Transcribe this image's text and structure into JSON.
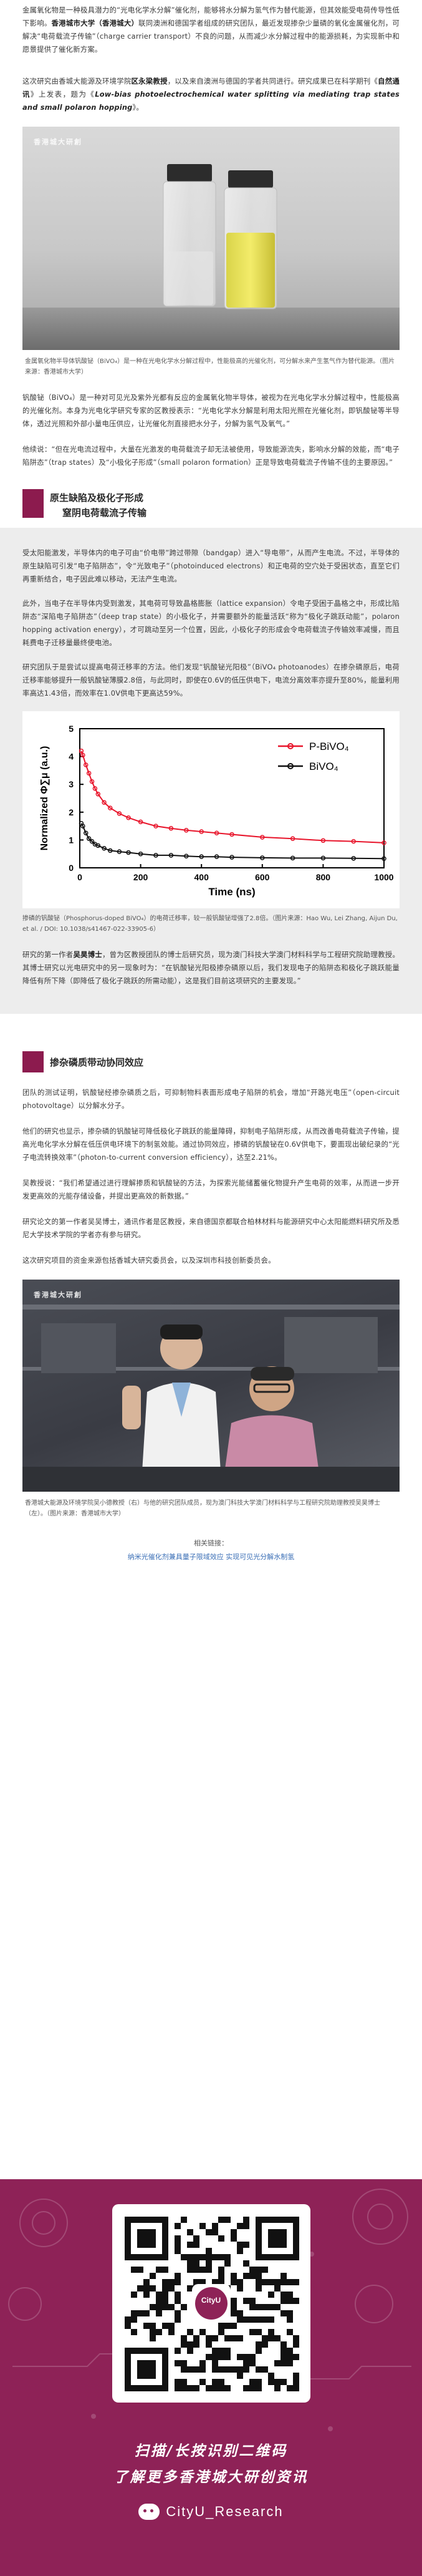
{
  "intro": {
    "p1_a": "金属氧化物是一种极具潜力的“光电化学水分解”催化剂，能够将水分解为氢气作为替代能源，但其效能受电荷传导性低下影响。",
    "p1_b": "香港城市大学（香港城大）",
    "p1_c": "联同澳洲和德国学者组成的研究团队，最近发现掺杂少量磷的氧化金属催化剂，可解决“电荷载流子传输”（charge carrier transport）不良的问题，从而减少水分解过程中的能源损耗，为实现新中和愿景提供了催化新方案。",
    "p2_a": "这次研究由香城大能源及环境学院",
    "p2_b": "区永梁教授",
    "p2_c": "，以及来自澳洲与德国的学者共同进行。研究成果已在科学期刊《",
    "p2_d": "自然通讯",
    "p2_e": "》上发表，题为《",
    "p2_f": "Low-bias photoelectrochemical water splitting via mediating trap states and small polaron hopping",
    "p2_g": "》。"
  },
  "photo1": {
    "watermark": "香港城大研創",
    "caption": "金属氧化物半导体钒酸铋（BiVO₄）是一种在光电化学水分解过程中，性能极高的光催化剂，可分解水来产生氢气作为替代能源。（图片来源：香港城市大学）"
  },
  "mid": {
    "p1": "钒酸铋（BiVO₄）是一种对可见光及紫外光都有反应的金属氧化物半导体，被视为在光电化学水分解过程中，性能极高的光催化剂。本身为光电化学研究专家的区教授表示：“光电化学水分解是利用太阳光照在光催化剂，即钒酸铋等半导体，透过光照和外部小量电压供应，让光催化剂直接把水分子，分解为氢气及氧气。”",
    "p2": "他续说：“但在光电流过程中，大量在光激发的电荷载流子却无法被使用，导致能源流失，影响水分解的效能，而“电子陷阱态”（trap states）及“小极化子形成”（small polaron formation）正是导致电荷载流子传输不佳的主要原因。”"
  },
  "section1": {
    "title_line1": "原生缺陷及极化子形成",
    "title_line2": "窒阴电荷载流子传输",
    "p1": "受太阳能激发，半导体内的电子可由“价电带”跨过带隙（bandgap）进入“导电带”，从而产生电流。不过，半导体的原生缺陷可引发“电子陷阱态”，令“光致电子”（photoinduced electrons）和正电荷的空穴处于受困状态，直至它们再重新结合，电子因此难以移动，无法产生电流。",
    "p2": "此外，当电子在半导体内受到激发，其电荷可导致晶格膨胀（lattice expansion）令电子受困于晶格之中，形成比陷阱态“深陷电子陷阱态”（deep trap state）的小极化子，并需要额外的能量活跃“称为“极化子跳跃动能”，polaron hopping activation energy），才可跳动至另一个位置，因此，小极化子的形成会令电荷载流子传输效率减慢，而且耗费电子迁移量最终使电池。",
    "p3": "研究团队于是尝试以提高电荷迁移率的方法。他们发现“钒酸铋光阳极”（BiVO₄ photoanodes）在掺杂磷原后，电荷迁移率能够提升一般钒酸铋薄膜2.8倍，与此同时，即使在0.6V的低压供电下，电流分离效率亦提升至80%，能量利用率高达1.43倍，而效率在1.0V供电下更高达59%。"
  },
  "chart_data": {
    "type": "line",
    "title": "",
    "xlabel": "Time (ns)",
    "ylabel": "Normalized Φ∑μ (a.u.)",
    "xlim": [
      0,
      1000
    ],
    "ylim": [
      0,
      5
    ],
    "xticks": [
      "0",
      "200",
      "400",
      "600",
      "800",
      "1000"
    ],
    "yticks": [
      "0",
      "1",
      "2",
      "3",
      "4",
      "5"
    ],
    "legend": "top-right",
    "series": [
      {
        "name": "P-BiVO₄",
        "color": "#e8152b",
        "x": [
          5,
          10,
          20,
          30,
          40,
          50,
          60,
          80,
          100,
          130,
          160,
          200,
          250,
          300,
          350,
          400,
          450,
          500,
          600,
          700,
          800,
          900,
          1000
        ],
        "values": [
          4.2,
          4.05,
          3.7,
          3.4,
          3.1,
          2.85,
          2.65,
          2.35,
          2.15,
          1.95,
          1.8,
          1.65,
          1.5,
          1.42,
          1.35,
          1.3,
          1.25,
          1.2,
          1.1,
          1.05,
          0.98,
          0.95,
          0.9
        ]
      },
      {
        "name": "BiVO₄",
        "color": "#111111",
        "x": [
          5,
          10,
          20,
          30,
          40,
          50,
          60,
          80,
          100,
          130,
          160,
          200,
          250,
          300,
          350,
          400,
          450,
          500,
          600,
          700,
          800,
          900,
          1000
        ],
        "values": [
          1.6,
          1.5,
          1.25,
          1.05,
          0.95,
          0.85,
          0.8,
          0.7,
          0.62,
          0.58,
          0.55,
          0.5,
          0.45,
          0.45,
          0.42,
          0.4,
          0.4,
          0.38,
          0.36,
          0.35,
          0.35,
          0.34,
          0.33
        ]
      }
    ]
  },
  "chart_caption": "掺磷的钒酸铋（Phosphorus-doped BiVO₄）的电荷迁移率，较一般钒酸铋增强了2.8倍。（图片来源：Hao Wu, Lei Zhang, Aijun Du, et al. / DOI: 10.1038/s41467-022-33905-6）",
  "after_chart": {
    "p1_a": "研究的第一作者",
    "p1_b": "吴昊博士",
    "p1_c": "，曾为区教授团队的博士后研究员，现为澳门科技大学澳门材料科学与工程研究院助理教授。其博士研究以光电研究中的另一现象时为：“在钒酸铋光阳极掺杂磷原以后，我们发现电子的陷阱态和极化子跳跃能量降低有所下降（即降低了极化子跳跃的所需动能），这是我们目前这项研究的主要发现。”"
  },
  "section2": {
    "title": "掺杂磷质带动协同效应",
    "p1": "团队的测试证明，钒酸铋经掺杂磷质之后，可抑制物料表面形成电子陷阱的机会，增加“开路光电压”（open-circuit photovoltage）以分解水分子。",
    "p2": "他们的研究也显示，掺杂磷的钒酸铋可降低极化子跳跃的能量障碍，抑制电子陷阱形成，从而改善电荷载流子传输，提高光电化学水分解在低压供电环境下的制氢效能。通过协同效应，掺磷的钒酸铋在0.6V供电下，要面现出破纪录的“光子电流转换效率”（photon-to-current conversion efficiency），达至2.21%。",
    "p3": "吴教授说：“我们希望通过进行理解掺质和钒酸铋的方法，为探索光能储蓄催化物提升产生电荷的效率，从而进一步开发更高效的光能存储设备，并提出更高效的新数据。”",
    "p4": "研究论文的第一作者吴吴博士，通讯作者是区教授，来自德国京都联合柏林材料与能源研究中心太阳能燃料研究所及悉尼大学技术学院的学者亦有参与研究。",
    "p5": "这次研究项目的资金来源包括香城大研究委员会，以及深圳市科技创新委员会。"
  },
  "photo2": {
    "watermark": "香港城大研創",
    "caption": "香港城大能源及环境学院吴小德教授（右）与他的研究团队成员，现为澳门科技大学澳门材料科学与工程研究院助理教授吴昊博士（左）。（图片来源：香港城市大学）"
  },
  "related": {
    "heading": "相关链接：",
    "link": "纳米光催化剂兼具量子限域效应 实现可见光分解水制氢"
  },
  "footer": {
    "logo_text": "CityU",
    "line1": "扫描/长按识别二维码",
    "line2": "了解更多香港城大研创资讯",
    "account": "CityU_Research",
    "colors": {
      "brand": "#8e2257",
      "accent": "#ffffff"
    }
  }
}
